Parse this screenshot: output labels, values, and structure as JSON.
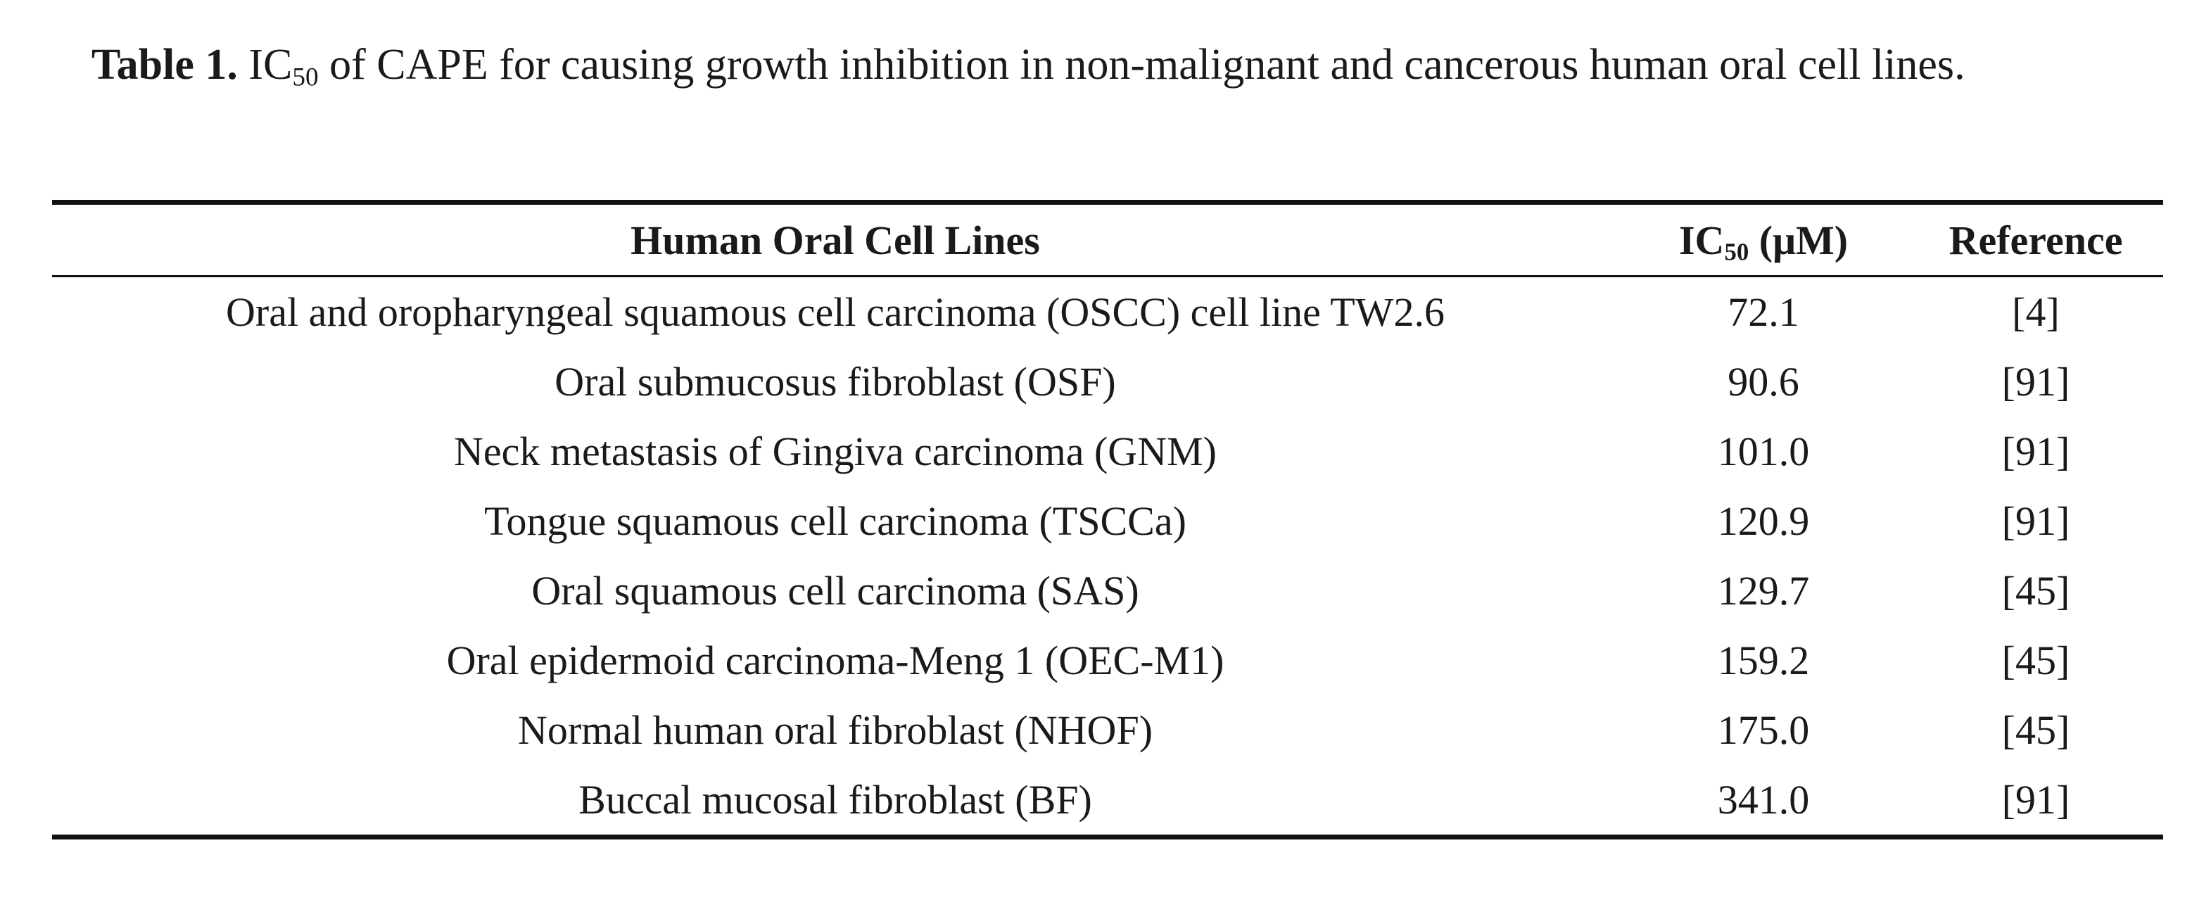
{
  "caption": {
    "label": "Table 1.",
    "parts": [
      "IC",
      "50",
      "of CAPE for causing growth inhibition in non-malignant and cancerous human oral cell lines."
    ]
  },
  "table": {
    "header": {
      "cell_lines": "Human Oral Cell Lines",
      "ic50": {
        "text": "IC",
        "sub": "50",
        "unit": "(μM)"
      },
      "reference": "Reference"
    },
    "rows": [
      [
        "Oral and oropharyngeal squamous cell carcinoma (OSCC) cell line TW2.6",
        "72.1",
        "[4]"
      ],
      [
        "Oral submucosus fibroblast (OSF)",
        "90.6",
        "[91]"
      ],
      [
        "Neck metastasis of Gingiva carcinoma (GNM)",
        "101.0",
        "[91]"
      ],
      [
        "Tongue squamous cell carcinoma (TSCCa)",
        "120.9",
        "[91]"
      ],
      [
        "Oral squamous cell carcinoma (SAS)",
        "129.7",
        "[45]"
      ],
      [
        "Oral epidermoid carcinoma-Meng 1 (OEC-M1)",
        "159.2",
        "[45]"
      ],
      [
        "Normal human oral fibroblast (NHOF)",
        "175.0",
        "[45]"
      ],
      [
        "Buccal mucosal fibroblast (BF)",
        "341.0",
        "[91]"
      ]
    ]
  }
}
